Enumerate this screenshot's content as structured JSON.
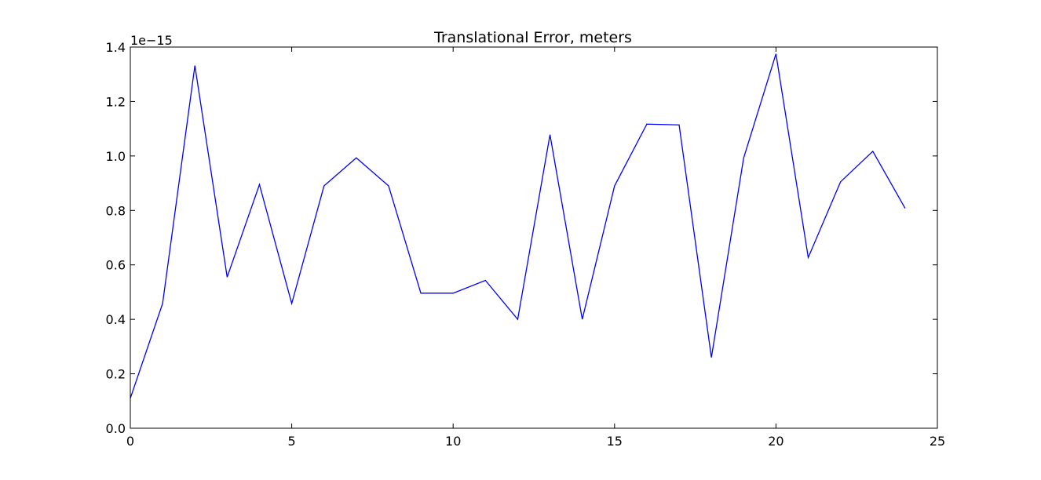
{
  "chart_data": {
    "type": "line",
    "title": "Translational Error, meters",
    "xlabel": "",
    "ylabel": "",
    "offset_label": "1e−15",
    "xlim": [
      0,
      25
    ],
    "ylim": [
      0.0,
      1.4
    ],
    "xticks": [
      0,
      5,
      10,
      15,
      20,
      25
    ],
    "xtick_labels": [
      "0",
      "5",
      "10",
      "15",
      "20",
      "25"
    ],
    "yticks": [
      0.0,
      0.2,
      0.4,
      0.6,
      0.8,
      1.0,
      1.2,
      1.4
    ],
    "ytick_labels": [
      "0.0",
      "0.2",
      "0.4",
      "0.6",
      "0.8",
      "1.0",
      "1.2",
      "1.4"
    ],
    "grid": false,
    "legend": "none",
    "line_color": "#0000ff",
    "series": [
      {
        "x": [
          0,
          1,
          2,
          3,
          4,
          5,
          6,
          7,
          8,
          9,
          10,
          11,
          12,
          13,
          14,
          15,
          16,
          17,
          18,
          19,
          20,
          21,
          22,
          23,
          24
        ],
        "values": [
          0.11,
          0.458,
          1.332,
          0.555,
          0.895,
          0.458,
          0.89,
          0.993,
          0.89,
          0.496,
          0.496,
          0.543,
          0.4,
          1.078,
          0.4,
          0.89,
          1.117,
          1.114,
          0.26,
          0.993,
          1.375,
          0.627,
          0.905,
          1.017,
          0.808
        ]
      }
    ]
  }
}
